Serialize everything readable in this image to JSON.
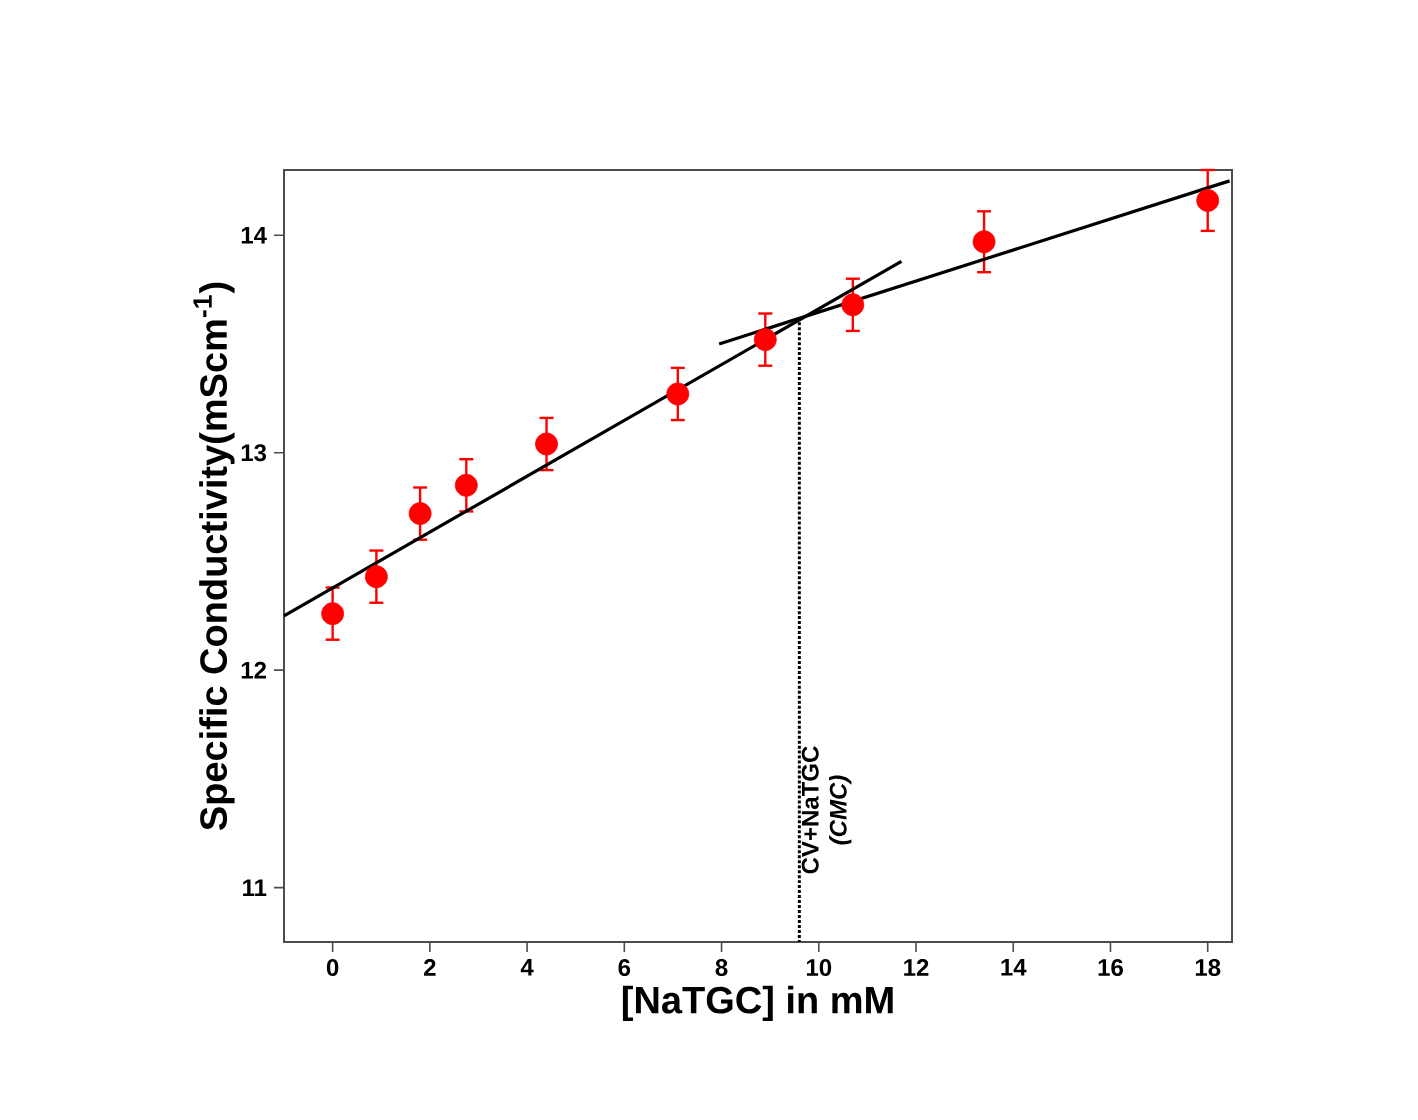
{
  "chart_data": {
    "type": "scatter",
    "xlabel": "[NaTGC] in mM",
    "ylabel": "Specific Conductivity(mScm$^{-1}$)",
    "xlim": [
      -1,
      18.5
    ],
    "ylim": [
      10.75,
      14.3
    ],
    "xticks": [
      0,
      2,
      4,
      6,
      8,
      10,
      12,
      14,
      16,
      18
    ],
    "yticks": [
      11,
      12,
      13,
      14
    ],
    "marker": "circle",
    "grid": false,
    "series": [
      {
        "color": "#ff0000",
        "x": [
          0,
          0.9,
          1.8,
          2.75,
          4.4,
          7.1,
          8.9,
          10.7,
          13.4,
          18
        ],
        "values": [
          12.26,
          12.43,
          12.72,
          12.85,
          13.04,
          13.27,
          13.52,
          13.68,
          13.97,
          14.16
        ],
        "errors": [
          0.12,
          0.12,
          0.12,
          0.12,
          0.12,
          0.12,
          0.12,
          0.12,
          0.14,
          0.14
        ]
      },
      {
        "type": "line",
        "color": "#000000",
        "marker": "none",
        "x": [
          -1,
          11.7
        ],
        "values": [
          12.25,
          13.88
        ]
      },
      {
        "type": "line",
        "color": "#000000",
        "marker": "none",
        "x": [
          7.95,
          18.45
        ],
        "values": [
          13.5,
          14.25
        ]
      }
    ],
    "ref_lines": [
      {
        "axis": "x",
        "value": 9.6,
        "label": "CV+NaTGC",
        "line_style": "dotted",
        "color": "#000000"
      }
    ],
    "annotations": [
      "(CMC)"
    ]
  }
}
